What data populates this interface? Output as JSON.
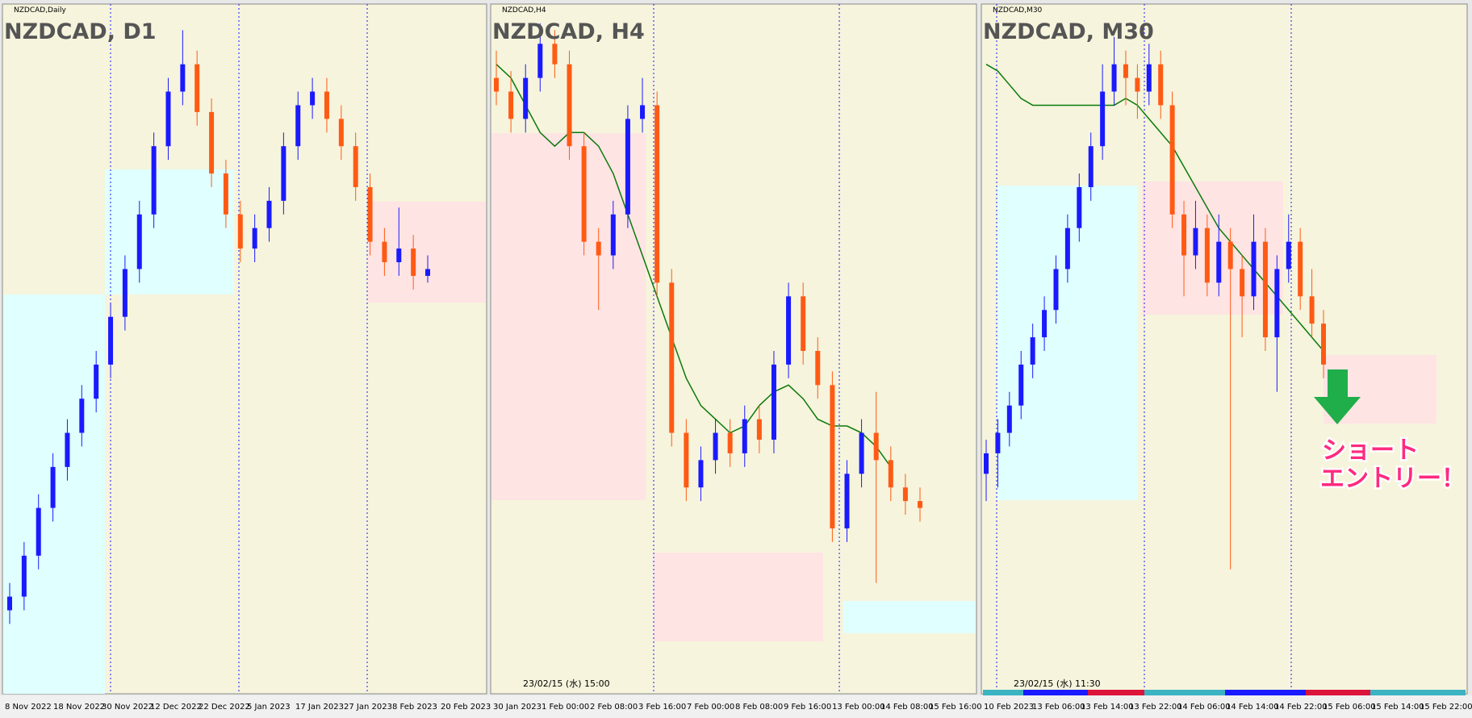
{
  "panels": [
    {
      "label": "NZDCAD,Daily",
      "title": "NZDCAD, D1",
      "ylim": [
        0,
        100
      ],
      "x_labels": [
        "8 Nov 2022",
        "18 Nov 2022",
        "30 Nov 2022",
        "12 Dec 2022",
        "22 Dec 2022",
        "5 Jan 2023",
        "17 Jan 2023",
        "27 Jan 2023",
        "8 Feb 2023",
        "20 Feb 2023"
      ],
      "candles": [
        [
          12,
          16,
          10,
          14
        ],
        [
          14,
          22,
          12,
          20
        ],
        [
          20,
          29,
          18,
          27
        ],
        [
          27,
          35,
          25,
          33
        ],
        [
          33,
          40,
          31,
          38
        ],
        [
          38,
          45,
          36,
          43
        ],
        [
          43,
          50,
          41,
          48
        ],
        [
          48,
          57,
          46,
          55
        ],
        [
          55,
          64,
          53,
          62
        ],
        [
          62,
          72,
          60,
          70
        ],
        [
          70,
          82,
          68,
          80
        ],
        [
          80,
          90,
          78,
          88
        ],
        [
          88,
          97,
          86,
          92
        ],
        [
          92,
          94,
          83,
          85
        ],
        [
          85,
          87,
          74,
          76
        ],
        [
          76,
          78,
          68,
          70
        ],
        [
          70,
          72,
          63,
          65
        ],
        [
          65,
          70,
          63,
          68
        ],
        [
          68,
          74,
          66,
          72
        ],
        [
          72,
          82,
          70,
          80
        ],
        [
          80,
          88,
          78,
          86
        ],
        [
          86,
          90,
          84,
          88
        ],
        [
          88,
          90,
          82,
          84
        ],
        [
          84,
          86,
          78,
          80
        ],
        [
          80,
          82,
          72,
          74
        ],
        [
          74,
          76,
          64,
          66
        ],
        [
          66,
          68,
          61,
          63
        ],
        [
          63,
          71,
          61,
          65
        ],
        [
          65,
          67,
          59,
          61
        ],
        [
          61,
          64,
          60,
          62
        ]
      ]
    },
    {
      "label": "NZDCAD,H4",
      "title": "NZDCAD, H4",
      "ylim": [
        0,
        100
      ],
      "timestamp": "23/02/15 (水) 15:00",
      "x_labels": [
        "30 Jan 2023",
        "1 Feb 00:00",
        "2 Feb 08:00",
        "3 Feb 16:00",
        "7 Feb 00:00",
        "8 Feb 08:00",
        "9 Feb 16:00",
        "13 Feb 00:00",
        "14 Feb 08:00",
        "15 Feb 16:00"
      ],
      "candles": [
        [
          90,
          94,
          86,
          88
        ],
        [
          88,
          91,
          82,
          84
        ],
        [
          84,
          92,
          82,
          90
        ],
        [
          90,
          98,
          88,
          95
        ],
        [
          95,
          97,
          90,
          92
        ],
        [
          92,
          94,
          78,
          80
        ],
        [
          80,
          82,
          64,
          66
        ],
        [
          66,
          68,
          56,
          64
        ],
        [
          64,
          72,
          62,
          70
        ],
        [
          70,
          86,
          68,
          84
        ],
        [
          84,
          90,
          82,
          86
        ],
        [
          86,
          88,
          58,
          60
        ],
        [
          60,
          62,
          36,
          38
        ],
        [
          38,
          40,
          28,
          30
        ],
        [
          30,
          36,
          28,
          34
        ],
        [
          34,
          40,
          32,
          38
        ],
        [
          38,
          40,
          33,
          35
        ],
        [
          35,
          42,
          33,
          40
        ],
        [
          40,
          42,
          35,
          37
        ],
        [
          37,
          50,
          35,
          48
        ],
        [
          48,
          60,
          46,
          58
        ],
        [
          58,
          60,
          48,
          50
        ],
        [
          50,
          52,
          43,
          45
        ],
        [
          45,
          47,
          22,
          24
        ],
        [
          24,
          34,
          22,
          32
        ],
        [
          32,
          40,
          30,
          38
        ],
        [
          38,
          44,
          16,
          34
        ],
        [
          34,
          36,
          28,
          30
        ],
        [
          30,
          32,
          26,
          28
        ],
        [
          28,
          30,
          25,
          27
        ]
      ],
      "ma": [
        92,
        90,
        86,
        82,
        80,
        82,
        82,
        80,
        76,
        70,
        64,
        58,
        52,
        46,
        42,
        40,
        38,
        39,
        42,
        44,
        45,
        43,
        40,
        39,
        39,
        38,
        36,
        33,
        null,
        null
      ]
    },
    {
      "label": "NZDCAD,M30",
      "title": "NZDCAD, M30",
      "ylim": [
        0,
        100
      ],
      "timestamp": "23/02/15 (水) 11:30",
      "x_labels": [
        "10 Feb 2023",
        "13 Feb 06:00",
        "13 Feb 14:00",
        "13 Feb 22:00",
        "14 Feb 06:00",
        "14 Feb 14:00",
        "14 Feb 22:00",
        "15 Feb 06:00",
        "15 Feb 14:00",
        "15 Feb 22:00"
      ],
      "candles": [
        [
          32,
          37,
          28,
          35
        ],
        [
          35,
          40,
          30,
          38
        ],
        [
          38,
          44,
          36,
          42
        ],
        [
          42,
          50,
          40,
          48
        ],
        [
          48,
          54,
          46,
          52
        ],
        [
          52,
          58,
          50,
          56
        ],
        [
          56,
          64,
          54,
          62
        ],
        [
          62,
          70,
          60,
          68
        ],
        [
          68,
          76,
          66,
          74
        ],
        [
          74,
          82,
          72,
          80
        ],
        [
          80,
          92,
          78,
          88
        ],
        [
          88,
          96,
          86,
          92
        ],
        [
          92,
          94,
          86,
          90
        ],
        [
          90,
          92,
          84,
          88
        ],
        [
          88,
          95,
          86,
          92
        ],
        [
          92,
          94,
          84,
          86
        ],
        [
          86,
          88,
          68,
          70
        ],
        [
          70,
          72,
          58,
          64
        ],
        [
          64,
          72,
          62,
          68
        ],
        [
          68,
          70,
          58,
          60
        ],
        [
          60,
          70,
          58,
          66
        ],
        [
          66,
          68,
          18,
          62
        ],
        [
          62,
          64,
          52,
          58
        ],
        [
          58,
          70,
          56,
          66
        ],
        [
          66,
          68,
          50,
          52
        ],
        [
          52,
          64,
          44,
          62
        ],
        [
          62,
          70,
          60,
          66
        ],
        [
          66,
          68,
          56,
          58
        ],
        [
          58,
          62,
          52,
          54
        ],
        [
          54,
          56,
          46,
          48
        ]
      ],
      "ma": [
        92,
        91,
        89,
        87,
        86,
        86,
        86,
        86,
        86,
        86,
        86,
        86,
        87,
        86,
        84,
        82,
        80,
        77,
        74,
        71,
        68,
        66,
        64,
        62,
        60,
        58,
        56,
        54,
        52,
        50
      ]
    }
  ],
  "annotation": {
    "line1": "ショート",
    "line2": "エントリー！"
  }
}
